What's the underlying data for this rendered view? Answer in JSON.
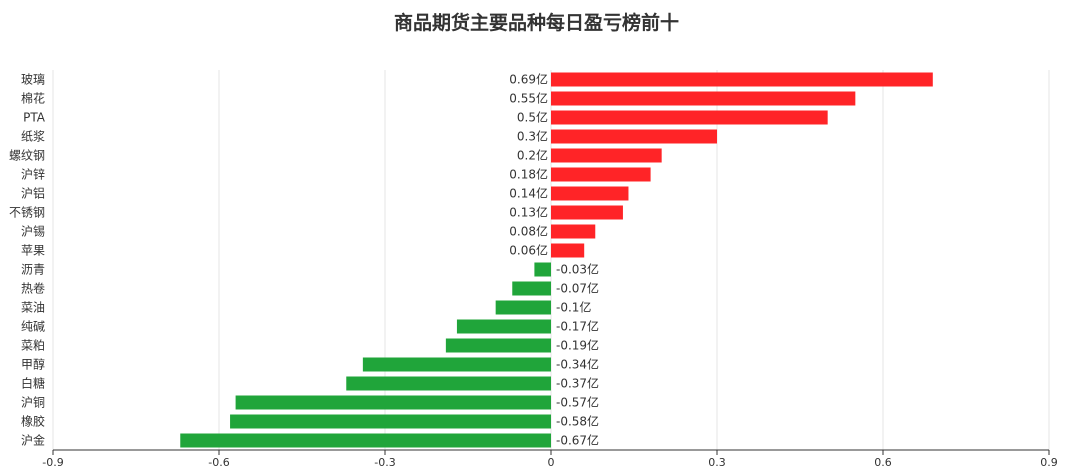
{
  "chart_data": {
    "type": "bar",
    "orientation": "horizontal",
    "title": "商品期货主要品种每日盈亏榜前十",
    "unit": "亿",
    "xlim": [
      -0.9,
      0.9
    ],
    "xticks": [
      "-0.9",
      "-0.6",
      "-0.3",
      "0",
      "0.3",
      "0.6",
      "0.9"
    ],
    "grid": true,
    "categories": [
      "玻璃",
      "棉花",
      "PTA",
      "纸浆",
      "螺纹钢",
      "沪锌",
      "沪铝",
      "不锈钢",
      "沪锡",
      "苹果",
      "沥青",
      "热卷",
      "菜油",
      "纯碱",
      "菜粕",
      "甲醇",
      "白糖",
      "沪铜",
      "橡胶",
      "沪金"
    ],
    "values": [
      0.69,
      0.55,
      0.5,
      0.3,
      0.2,
      0.18,
      0.14,
      0.13,
      0.08,
      0.06,
      -0.03,
      -0.07,
      -0.1,
      -0.17,
      -0.19,
      -0.34,
      -0.37,
      -0.57,
      -0.58,
      -0.67
    ],
    "value_labels": [
      "0.69亿",
      "0.55亿",
      "0.5亿",
      "0.3亿",
      "0.2亿",
      "0.18亿",
      "0.14亿",
      "0.13亿",
      "0.08亿",
      "0.06亿",
      "-0.03亿",
      "-0.07亿",
      "-0.1亿",
      "-0.17亿",
      "-0.19亿",
      "-0.34亿",
      "-0.37亿",
      "-0.57亿",
      "-0.58亿",
      "-0.67亿"
    ],
    "colors": {
      "positive": "#ff2427",
      "negative": "#20a53a",
      "grid": "#e6e6e6",
      "axis": "#333333"
    }
  }
}
